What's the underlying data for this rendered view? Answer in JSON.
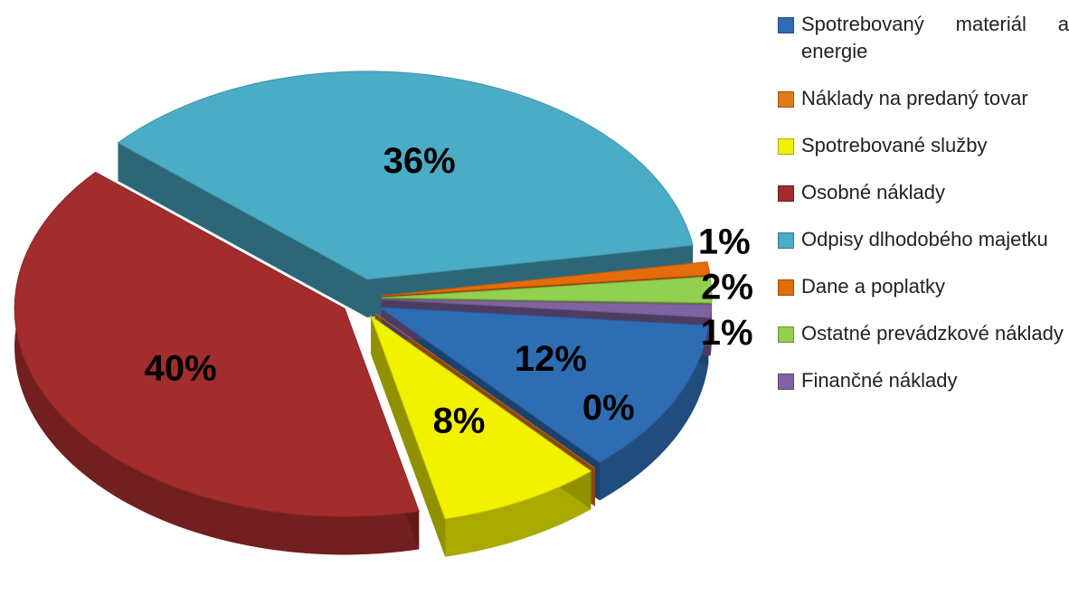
{
  "chart_data": {
    "type": "pie",
    "categories": [
      "Spotrebovaný materiál a energie",
      "Náklady na predaný tovar",
      "Spotrebované služby",
      "Osobné náklady",
      "Odpisy dlhodobého majetku",
      "Dane a poplatky",
      "Ostatné prevádzkové náklady",
      "Finančné náklady"
    ],
    "values": [
      12,
      0,
      8,
      40,
      36,
      1,
      2,
      1
    ],
    "value_labels": [
      "12%",
      "0%",
      "8%",
      "40%",
      "36%",
      "1%",
      "2%",
      "1%"
    ],
    "colors": [
      "#2e6db4",
      "#e07b1a",
      "#f2f200",
      "#a32c2c",
      "#4bacc6",
      "#e46c0a",
      "#92d050",
      "#8064a2"
    ]
  }
}
